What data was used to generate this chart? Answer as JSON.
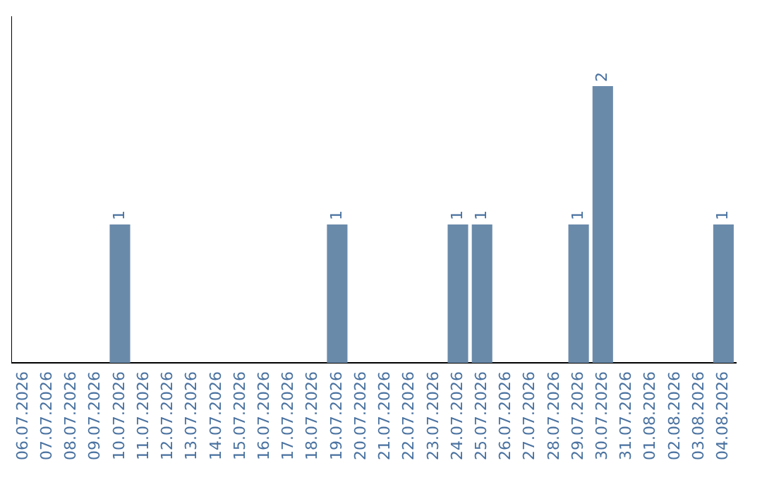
{
  "chart_data": {
    "type": "bar",
    "categories": [
      "06.07.2026",
      "07.07.2026",
      "08.07.2026",
      "09.07.2026",
      "10.07.2026",
      "11.07.2026",
      "12.07.2026",
      "13.07.2026",
      "14.07.2026",
      "15.07.2026",
      "16.07.2026",
      "17.07.2026",
      "18.07.2026",
      "19.07.2026",
      "20.07.2026",
      "21.07.2026",
      "22.07.2026",
      "23.07.2026",
      "24.07.2026",
      "25.07.2026",
      "26.07.2026",
      "27.07.2026",
      "28.07.2026",
      "29.07.2026",
      "30.07.2026",
      "31.07.2026",
      "01.08.2026",
      "02.08.2026",
      "03.08.2026",
      "04.08.2026"
    ],
    "values": [
      0,
      0,
      0,
      0,
      1,
      0,
      0,
      0,
      0,
      0,
      0,
      0,
      0,
      1,
      0,
      0,
      0,
      0,
      1,
      1,
      0,
      0,
      0,
      1,
      2,
      0,
      0,
      0,
      0,
      1
    ],
    "value_labels": [
      null,
      null,
      null,
      null,
      "1",
      null,
      null,
      null,
      null,
      null,
      null,
      null,
      null,
      "1",
      null,
      null,
      null,
      null,
      "1",
      "1",
      null,
      null,
      null,
      "1",
      "2",
      null,
      null,
      null,
      null,
      "1"
    ],
    "color": "#6a8aaa",
    "grid": false,
    "legend": false,
    "tick_labels": "x"
  }
}
